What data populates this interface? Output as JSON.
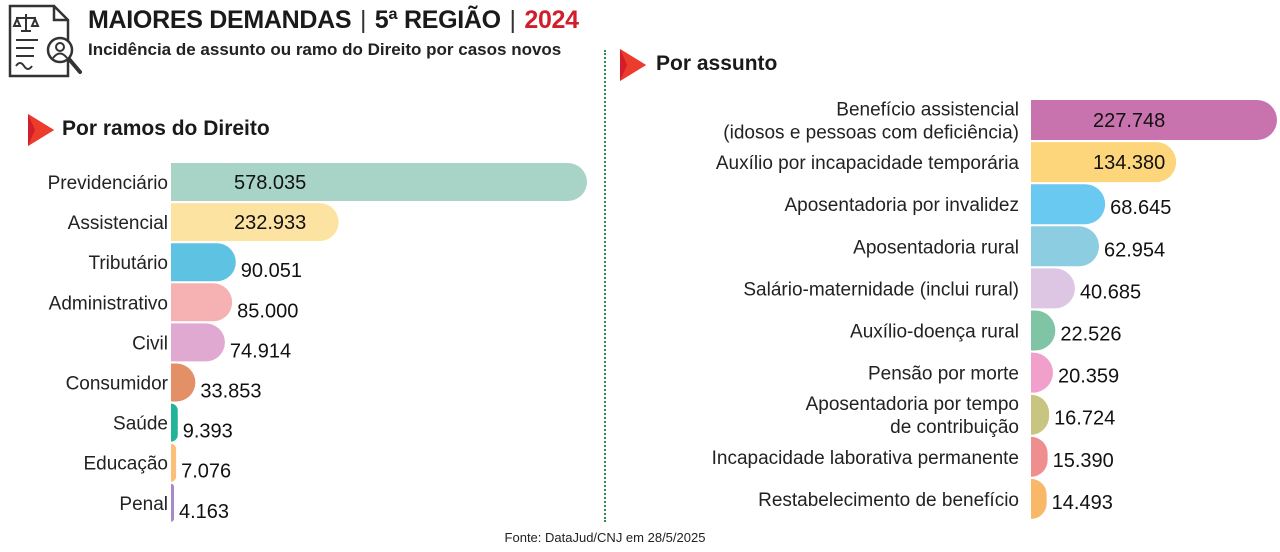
{
  "header": {
    "title_main": "MAIORES DEMANDAS",
    "separator": "|",
    "title_region": "5ª REGIÃO",
    "title_year": "2024",
    "subtitle": "Incidência de assunto ou ramo do Direito por casos novos",
    "icon": "document-scales-search-icon"
  },
  "sections": {
    "left_title": "Por ramos do Direito",
    "right_title": "Por assunto",
    "arrow_icon": "red-arrow-icon"
  },
  "source": "Fonte: DataJud/CNJ em 28/5/2025",
  "chart_data": [
    {
      "type": "bar",
      "orientation": "horizontal",
      "title": "Por ramos do Direito",
      "categories": [
        "Previdenciário",
        "Assistencial",
        "Tributário",
        "Administrativo",
        "Civil",
        "Consumidor",
        "Saúde",
        "Educação",
        "Penal"
      ],
      "values": [
        578035,
        232933,
        90051,
        85000,
        74914,
        33853,
        9393,
        7076,
        4163
      ],
      "value_labels": [
        "578.035",
        "232.933",
        "90.051",
        "85.000",
        "74.914",
        "33.853",
        "9.393",
        "7.076",
        "4.163"
      ],
      "colors": [
        "#a8d4c7",
        "#fde3a2",
        "#5ec3e3",
        "#f6b1b3",
        "#e0a9d1",
        "#e39067",
        "#21b49a",
        "#fbbf79",
        "#a889c8"
      ],
      "xlim": [
        0,
        578035
      ]
    },
    {
      "type": "bar",
      "orientation": "horizontal",
      "title": "Por assunto",
      "categories": [
        [
          "Benefício assistencial",
          "(idosos e pessoas com deficiência)"
        ],
        [
          "Auxílio por incapacidade temporária"
        ],
        [
          "Aposentadoria por invalidez"
        ],
        [
          "Aposentadoria rural"
        ],
        [
          "Salário-maternidade (inclui rural)"
        ],
        [
          "Auxílio-doença rural"
        ],
        [
          "Pensão por morte"
        ],
        [
          "Aposentadoria por tempo",
          "de contribuição"
        ],
        [
          "Incapacidade laborativa permanente"
        ],
        [
          "Restabelecimento de benefício"
        ]
      ],
      "values": [
        227748,
        134380,
        68645,
        62954,
        40685,
        22526,
        20359,
        16724,
        15390,
        14493
      ],
      "value_labels": [
        "227.748",
        "134.380",
        "68.645",
        "62.954",
        "40.685",
        "22.526",
        "20.359",
        "16.724",
        "15.390",
        "14.493"
      ],
      "colors": [
        "#c873ae",
        "#fdd67b",
        "#6ac9f1",
        "#8ccde1",
        "#dcc6e3",
        "#80c4a6",
        "#f1a0cb",
        "#c7c580",
        "#ef8e8e",
        "#f9b868"
      ],
      "xlim": [
        0,
        227748
      ]
    }
  ]
}
